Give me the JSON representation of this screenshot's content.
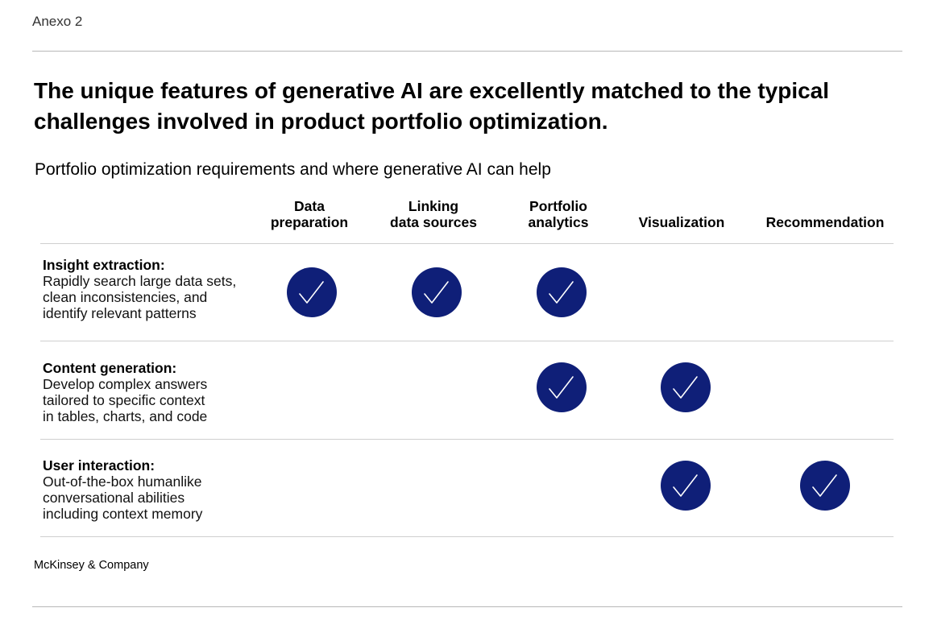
{
  "exhibit_label": "Anexo 2",
  "headline": "The unique features of generative AI are excellently matched to the typical challenges involved in product portfolio optimization.",
  "colors": {
    "check_fill": "#0f1f78",
    "check_stroke": "#ffffff",
    "rule": "#cfcfcf"
  },
  "chart_data": {
    "type": "table",
    "title": "Portfolio optimization requirements and where generative AI can help",
    "columns": [
      "Data\npreparation",
      "Linking\ndata sources",
      "Portfolio\nanalytics",
      "Visualization",
      "Recommendation"
    ],
    "rows": [
      {
        "title": "Insight extraction:",
        "description": "Rapidly search large data sets,\nclean inconsistencies, and\nidentify relevant patterns",
        "checks": [
          true,
          true,
          true,
          false,
          false
        ]
      },
      {
        "title": "Content generation:",
        "description": "Develop complex answers\ntailored to specific context\nin tables, charts, and code",
        "checks": [
          false,
          false,
          true,
          true,
          false
        ]
      },
      {
        "title": "User interaction:",
        "description": "Out-of-the-box humanlike\nconversational abilities\nincluding context memory",
        "checks": [
          false,
          false,
          false,
          true,
          true
        ]
      }
    ],
    "check_icon": "check-circle-icon"
  },
  "source": "McKinsey & Company"
}
